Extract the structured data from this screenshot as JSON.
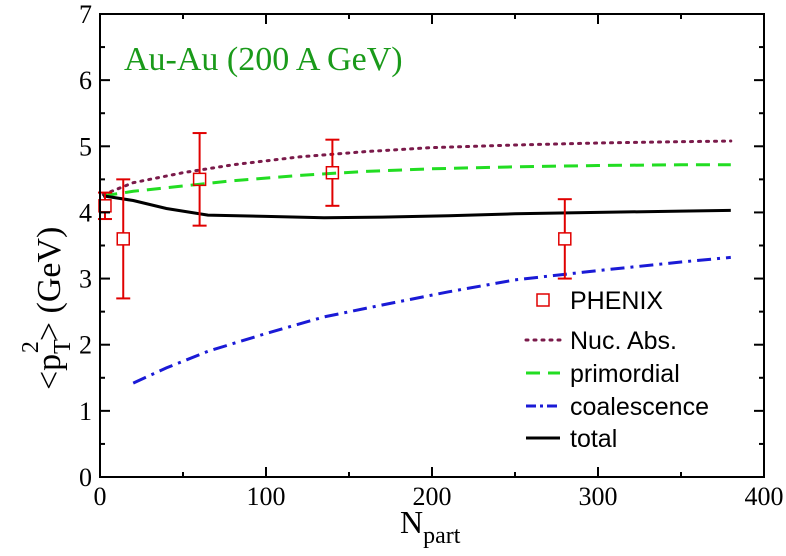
{
  "chart_data": {
    "type": "line",
    "annotation": "Au-Au (200 A GeV)",
    "annotation_color": "#1a9a1a",
    "xlabel": {
      "main": "N",
      "sub": "part"
    },
    "ylabel": {
      "pre": "<p",
      "sub": "T",
      "sup": "2",
      "post": "> (GeV)"
    },
    "xlim": [
      0,
      400
    ],
    "ylim": [
      0,
      7
    ],
    "xticks": [
      0,
      100,
      200,
      300,
      400
    ],
    "yticks": [
      0,
      1,
      2,
      3,
      4,
      5,
      6,
      7
    ],
    "grid": false,
    "legend_position": "bottom-right",
    "series": [
      {
        "name": "PHENIX",
        "kind": "points",
        "color": "#e00000",
        "points": [
          {
            "x": 3,
            "y": 4.1,
            "err": 0.2
          },
          {
            "x": 14,
            "y": 3.6,
            "err": 0.9
          },
          {
            "x": 60,
            "y": 4.5,
            "err": 0.7
          },
          {
            "x": 140,
            "y": 4.6,
            "err": 0.5
          },
          {
            "x": 280,
            "y": 3.6,
            "err": 0.6
          }
        ]
      },
      {
        "name": "Nuc. Abs.",
        "kind": "line",
        "style": "dotted",
        "color": "#7a1a4a",
        "x": [
          2,
          20,
          50,
          80,
          120,
          160,
          200,
          250,
          300,
          350,
          380
        ],
        "y": [
          4.27,
          4.45,
          4.6,
          4.72,
          4.84,
          4.92,
          4.98,
          5.02,
          5.05,
          5.07,
          5.08
        ]
      },
      {
        "name": "primordial",
        "kind": "line",
        "style": "dashed",
        "color": "#22dd22",
        "x": [
          2,
          20,
          50,
          80,
          120,
          160,
          200,
          250,
          300,
          350,
          380
        ],
        "y": [
          4.25,
          4.32,
          4.4,
          4.48,
          4.56,
          4.62,
          4.66,
          4.69,
          4.71,
          4.72,
          4.72
        ]
      },
      {
        "name": "coalescence",
        "kind": "line",
        "style": "dashdot",
        "color": "#1a1ad6",
        "x": [
          20,
          40,
          65,
          100,
          135,
          170,
          210,
          250,
          300,
          350,
          380
        ],
        "y": [
          1.42,
          1.65,
          1.9,
          2.17,
          2.42,
          2.6,
          2.8,
          2.98,
          3.12,
          3.25,
          3.32
        ]
      },
      {
        "name": "total",
        "kind": "line",
        "style": "solid",
        "color": "#000000",
        "x": [
          2,
          20,
          40,
          65,
          100,
          135,
          170,
          210,
          250,
          300,
          350,
          380
        ],
        "y": [
          4.25,
          4.18,
          4.06,
          3.96,
          3.94,
          3.92,
          3.93,
          3.95,
          3.98,
          4.0,
          4.02,
          4.03
        ]
      }
    ]
  }
}
